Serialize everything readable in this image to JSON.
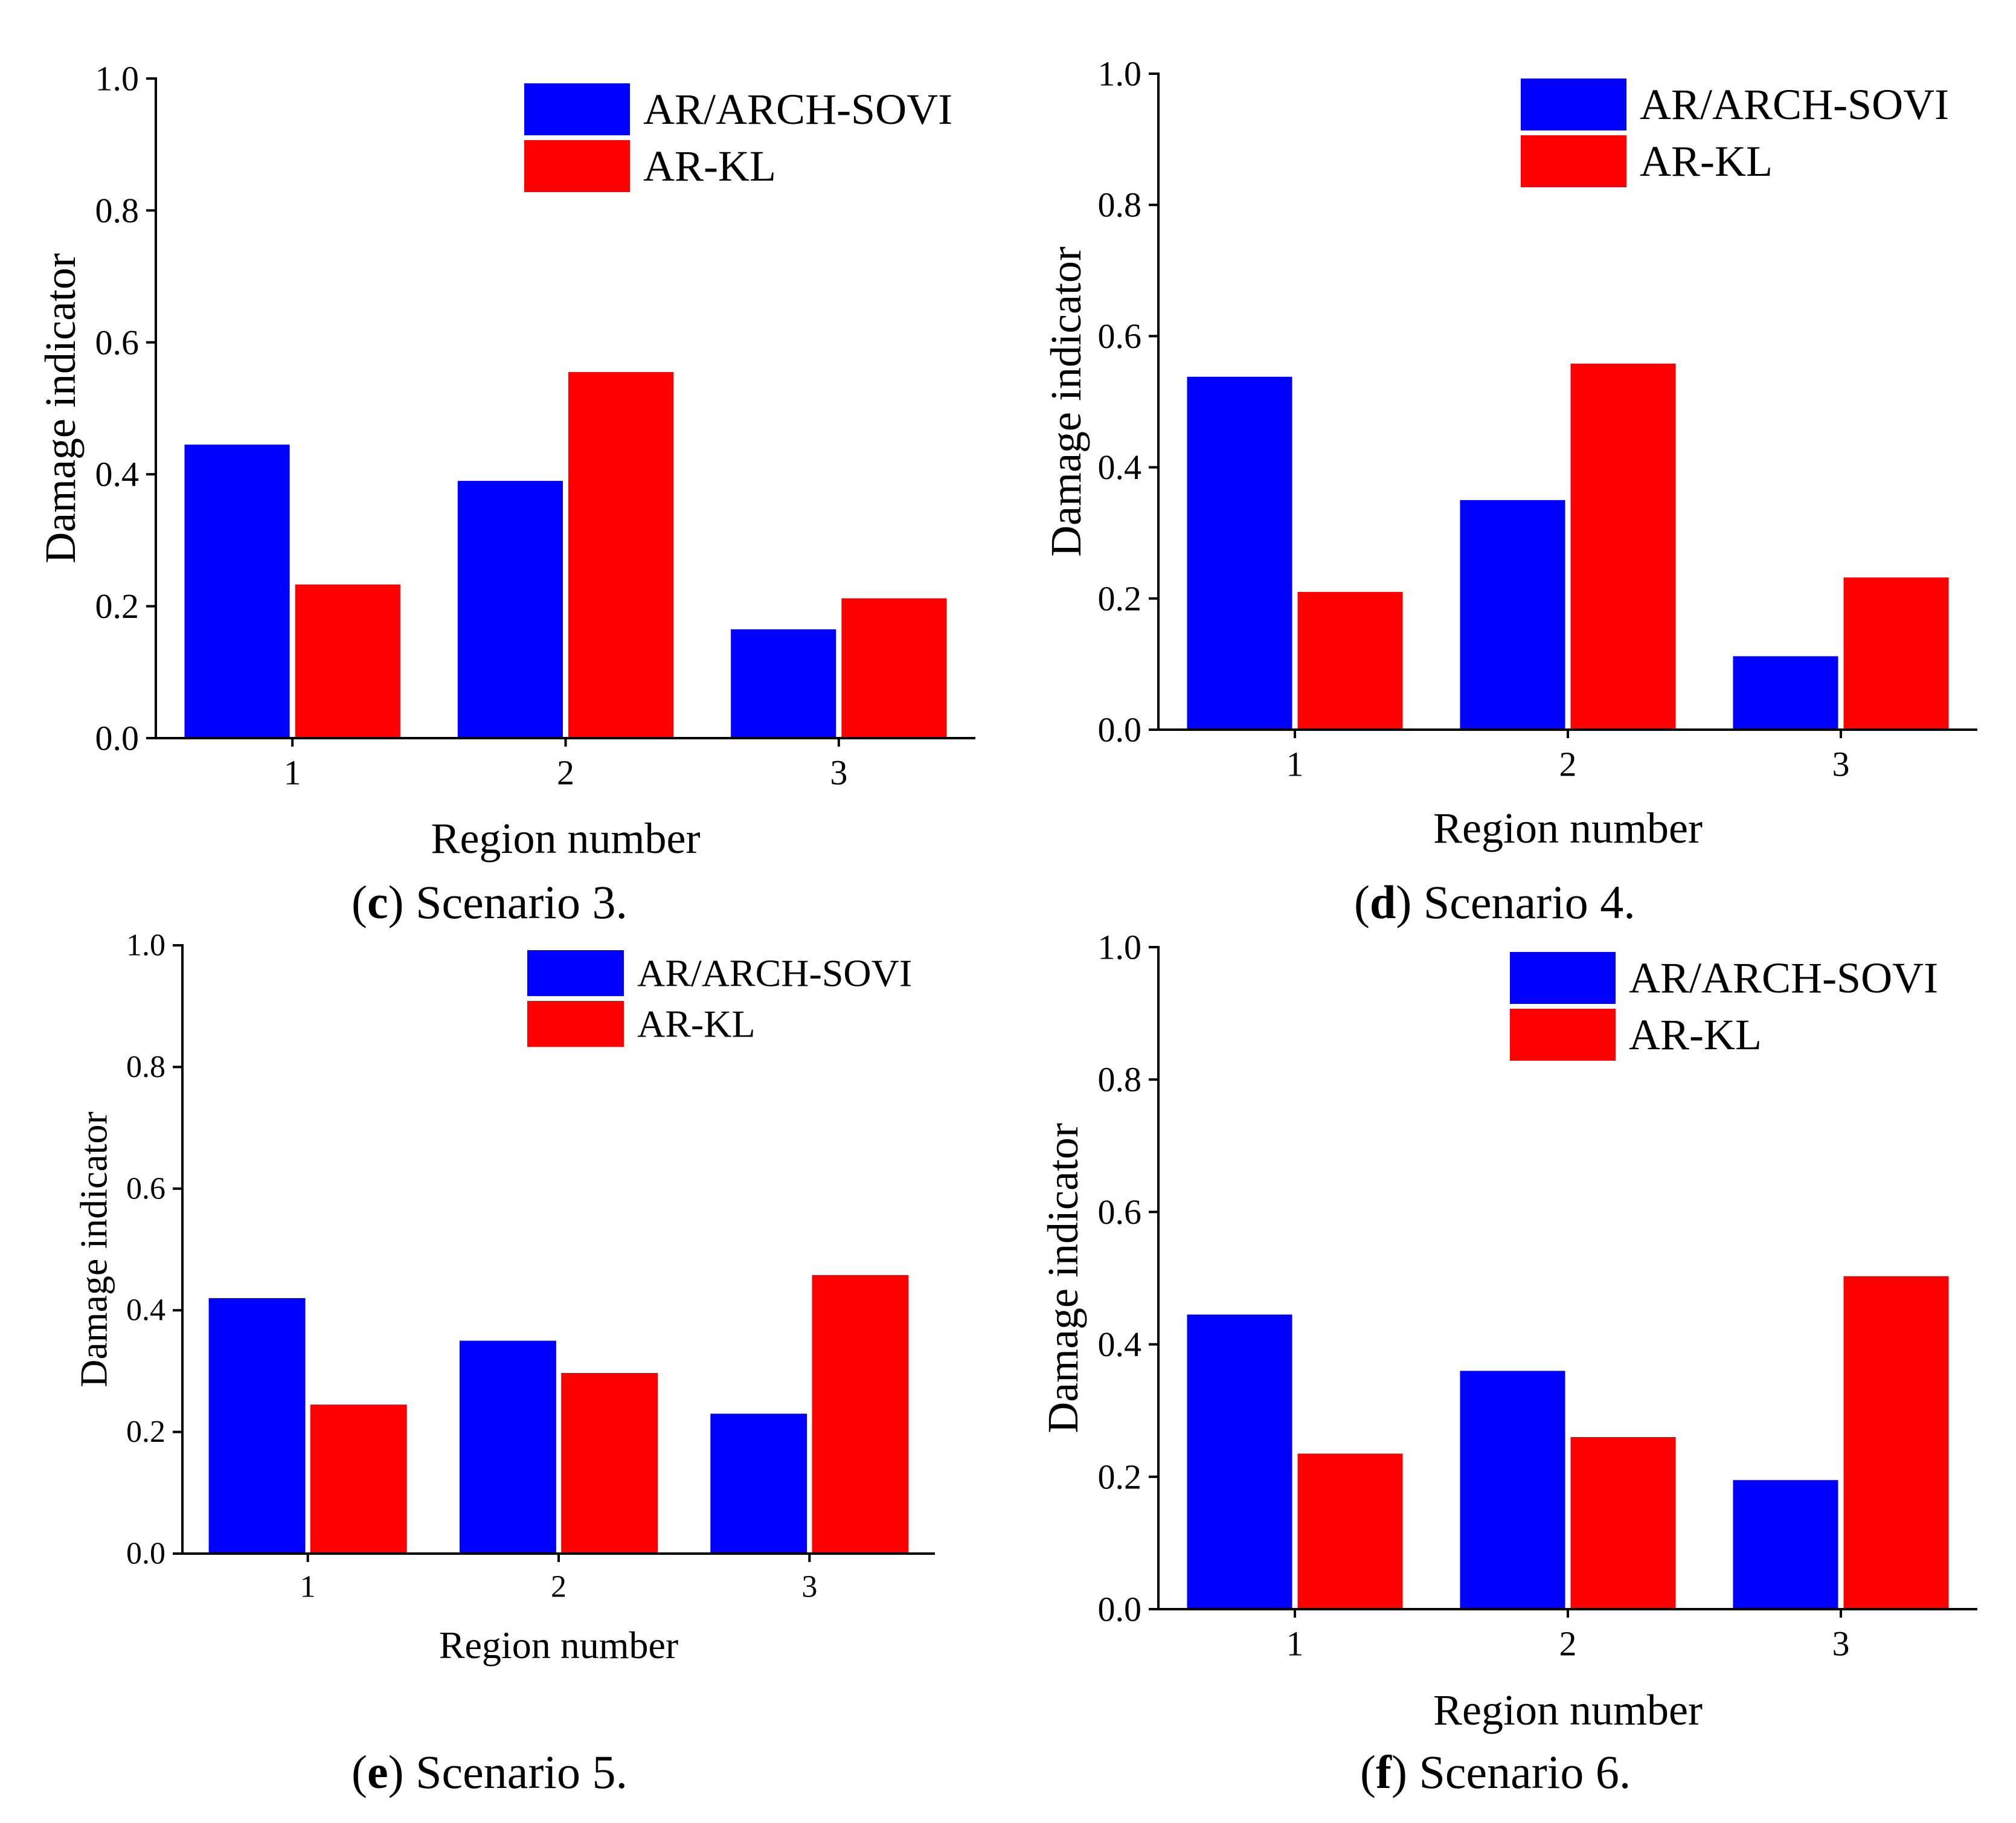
{
  "colors": {
    "series_1": "#0000ff",
    "series_2": "#ff0000",
    "axis": "#000000"
  },
  "chart_data": [
    {
      "type": "bar",
      "panel_letter": "c",
      "caption_text": " Scenario 3.",
      "xlabel": "Region number",
      "ylabel": "Damage indicator",
      "categories": [
        "1",
        "2",
        "3"
      ],
      "ylim": [
        0,
        1.0
      ],
      "yticks": [
        "0.0",
        "0.2",
        "0.4",
        "0.6",
        "0.8",
        "1.0"
      ],
      "legend_position": "top-right",
      "series": [
        {
          "name": "AR/ARCH-SOVI",
          "values": [
            0.445,
            0.39,
            0.165
          ]
        },
        {
          "name": "AR-KL",
          "values": [
            0.233,
            0.555,
            0.212
          ]
        }
      ]
    },
    {
      "type": "bar",
      "panel_letter": "d",
      "caption_text": " Scenario 4.",
      "xlabel": "Region number",
      "ylabel": "Damage indicator",
      "categories": [
        "1",
        "2",
        "3"
      ],
      "ylim": [
        0,
        1.0
      ],
      "yticks": [
        "0.0",
        "0.2",
        "0.4",
        "0.6",
        "0.8",
        "1.0"
      ],
      "legend_position": "top-right",
      "series": [
        {
          "name": "AR/ARCH-SOVI",
          "values": [
            0.538,
            0.35,
            0.112
          ]
        },
        {
          "name": "AR-KL",
          "values": [
            0.21,
            0.558,
            0.232
          ]
        }
      ]
    },
    {
      "type": "bar",
      "panel_letter": "e",
      "caption_text": " Scenario 5.",
      "xlabel": "Region number",
      "ylabel": "Damage indicator",
      "categories": [
        "1",
        "2",
        "3"
      ],
      "ylim": [
        0,
        1.0
      ],
      "yticks": [
        "0.0",
        "0.2",
        "0.4",
        "0.6",
        "0.8",
        "1.0"
      ],
      "legend_position": "top-right",
      "series": [
        {
          "name": "AR/ARCH-SOVI",
          "values": [
            0.42,
            0.35,
            0.23
          ]
        },
        {
          "name": "AR-KL",
          "values": [
            0.245,
            0.297,
            0.458
          ]
        }
      ]
    },
    {
      "type": "bar",
      "panel_letter": "f",
      "caption_text": " Scenario 6.",
      "xlabel": "Region number",
      "ylabel": "Damage indicator",
      "categories": [
        "1",
        "2",
        "3"
      ],
      "ylim": [
        0,
        1.0
      ],
      "yticks": [
        "0.0",
        "0.2",
        "0.4",
        "0.6",
        "0.8",
        "1.0"
      ],
      "legend_position": "top-right",
      "series": [
        {
          "name": "AR/ARCH-SOVI",
          "values": [
            0.445,
            0.36,
            0.195
          ]
        },
        {
          "name": "AR-KL",
          "values": [
            0.235,
            0.26,
            0.503
          ]
        }
      ]
    }
  ]
}
